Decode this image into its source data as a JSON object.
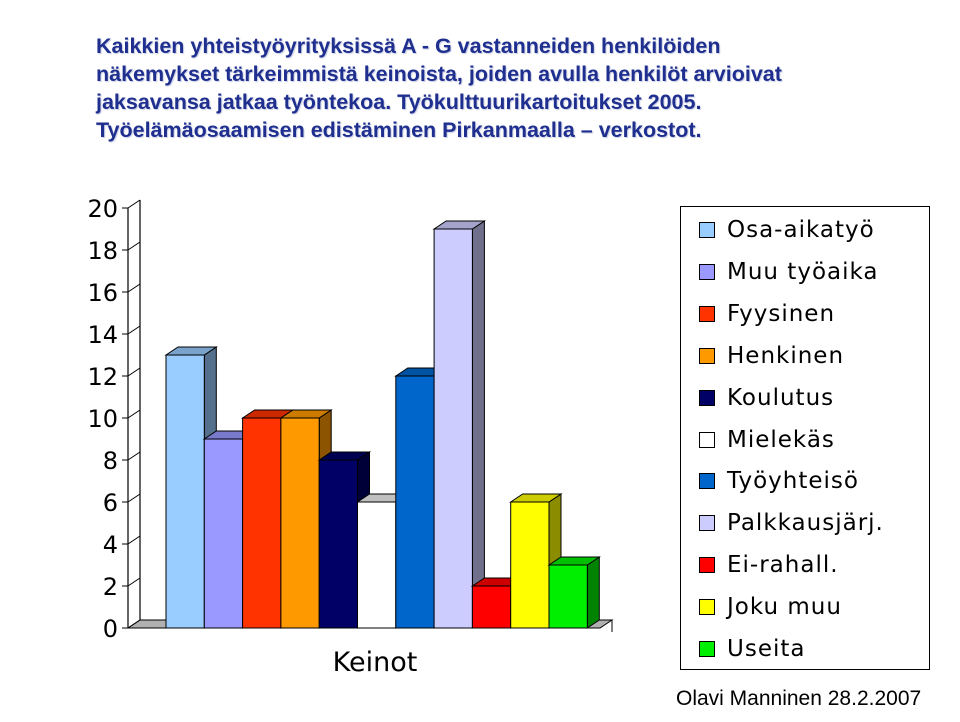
{
  "title_lines": [
    "Kaikkien yhteistyöyrityksissä A - G vastanneiden henkilöiden",
    "näkemykset tärkeimmistä keinoista, joiden avulla henkilöt arvioivat",
    "jaksavansa jatkaa työntekoa. Työkulttuurikartoitukset 2005.",
    "Työelämäosaamisen edistäminen Pirkanmaalla – verkostot."
  ],
  "footer": "Olavi Manninen 28.2.2007",
  "chart_data": {
    "type": "bar",
    "title": "",
    "xlabel": "Keinot",
    "ylabel": "",
    "ylim": [
      0,
      20
    ],
    "yticks": [
      0,
      2,
      4,
      6,
      8,
      10,
      12,
      14,
      16,
      18,
      20
    ],
    "grid": false,
    "legend_position": "right",
    "series": [
      {
        "name": "Osa-aikatyö",
        "value": 13,
        "color": "#99ccff"
      },
      {
        "name": "Muu työaika",
        "value": 9,
        "color": "#9999ff"
      },
      {
        "name": "Fyysinen",
        "value": 10,
        "color": "#ff3300"
      },
      {
        "name": "Henkinen",
        "value": 10,
        "color": "#ff9900"
      },
      {
        "name": "Koulutus",
        "value": 8,
        "color": "#000066"
      },
      {
        "name": "Mielekäs",
        "value": 6,
        "color": "#ffffff"
      },
      {
        "name": "Työyhteisö",
        "value": 12,
        "color": "#0066cc"
      },
      {
        "name": "Palkkausjärj.",
        "value": 19,
        "color": "#ccccff"
      },
      {
        "name": "Ei-rahall.",
        "value": 2,
        "color": "#ff0000"
      },
      {
        "name": "Joku muu",
        "value": 6,
        "color": "#ffff00"
      },
      {
        "name": "Useita",
        "value": 3,
        "color": "#00ee00"
      }
    ]
  }
}
